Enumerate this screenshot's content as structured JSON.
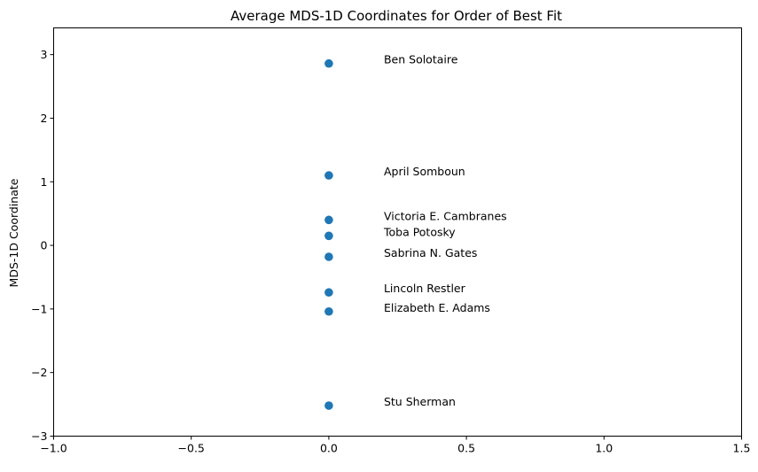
{
  "chart_data": {
    "type": "scatter",
    "title": "Average MDS-1D Coordinates for Order of Best Fit",
    "xlabel": "",
    "ylabel": "MDS-1D Coordinate",
    "xlim": [
      -1.0,
      1.5
    ],
    "ylim": [
      -3.0,
      3.42
    ],
    "x_ticks": [
      -1.0,
      -0.5,
      0.0,
      0.5,
      1.0,
      1.5
    ],
    "x_tick_labels": [
      "−1.0",
      "−0.5",
      "0.0",
      "0.5",
      "1.0",
      "1.5"
    ],
    "y_ticks": [
      -3,
      -2,
      -1,
      0,
      1,
      2,
      3
    ],
    "y_tick_labels": [
      "−3",
      "−2",
      "−1",
      "0",
      "1",
      "2",
      "3"
    ],
    "grid": false,
    "marker_color": "#1f77b4",
    "annotation_x_offset": 0.2,
    "points": [
      {
        "label": "Ben Solotaire",
        "x": 0.0,
        "y": 2.86
      },
      {
        "label": "April Somboun",
        "x": 0.0,
        "y": 1.1
      },
      {
        "label": "Victoria E. Cambranes",
        "x": 0.0,
        "y": 0.4
      },
      {
        "label": "Toba Potosky",
        "x": 0.0,
        "y": 0.15
      },
      {
        "label": "Sabrina N. Gates",
        "x": 0.0,
        "y": -0.18
      },
      {
        "label": "Lincoln Restler",
        "x": 0.0,
        "y": -0.74
      },
      {
        "label": "Elizabeth E. Adams",
        "x": 0.0,
        "y": -1.04
      },
      {
        "label": "Stu Sherman",
        "x": 0.0,
        "y": -2.52
      }
    ]
  }
}
